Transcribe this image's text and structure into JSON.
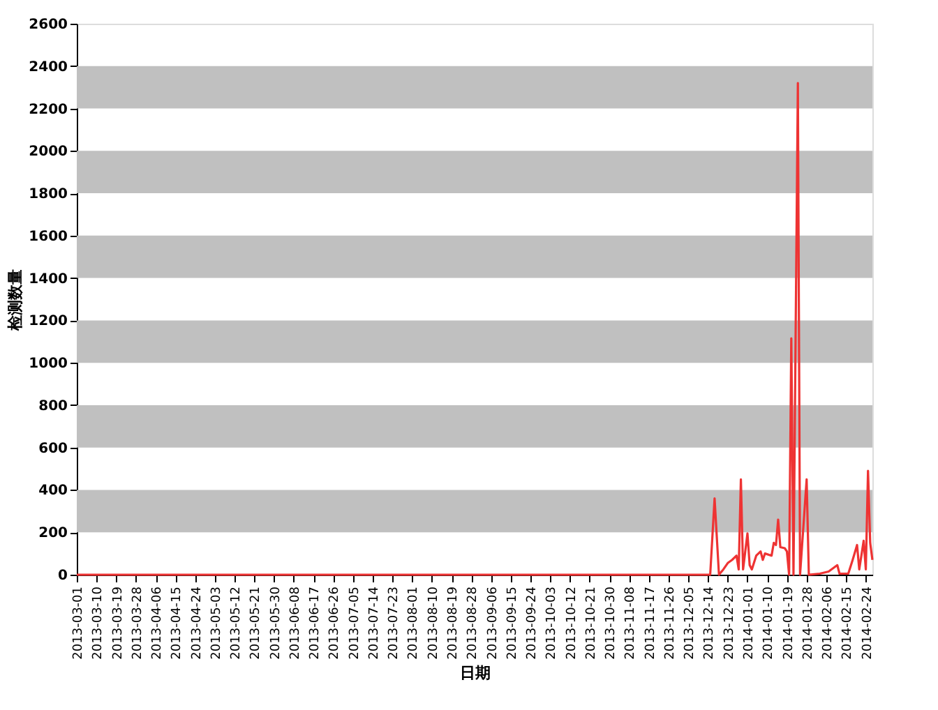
{
  "chart_data": {
    "type": "line",
    "xlabel": "日期",
    "ylabel": "检测数量",
    "x": [
      "2013-03-01",
      "2013-12-15",
      "2013-12-17",
      "2013-12-19",
      "2013-12-21",
      "2013-12-23",
      "2013-12-25",
      "2013-12-27",
      "2013-12-28",
      "2013-12-29",
      "2013-12-30",
      "2014-01-01",
      "2014-01-02",
      "2014-01-03",
      "2014-01-05",
      "2014-01-07",
      "2014-01-08",
      "2014-01-09",
      "2014-01-12",
      "2014-01-13",
      "2014-01-14",
      "2014-01-15",
      "2014-01-16",
      "2014-01-18",
      "2014-01-19",
      "2014-01-20",
      "2014-01-21",
      "2014-01-22",
      "2014-01-24",
      "2014-01-25",
      "2014-01-28",
      "2014-01-29",
      "2014-02-03",
      "2014-02-07",
      "2014-02-11",
      "2014-02-12",
      "2014-02-16",
      "2014-02-18",
      "2014-02-20",
      "2014-02-21",
      "2014-02-23",
      "2014-02-24",
      "2014-02-25",
      "2014-02-26",
      "2014-02-27"
    ],
    "series": [
      {
        "color": "#ee3333",
        "values": [
          0,
          0,
          360,
          0,
          25,
          55,
          70,
          90,
          25,
          450,
          25,
          195,
          45,
          25,
          90,
          110,
          70,
          100,
          90,
          150,
          140,
          260,
          130,
          125,
          110,
          0,
          1115,
          0,
          2320,
          0,
          450,
          0,
          5,
          15,
          45,
          5,
          5,
          70,
          140,
          25,
          160,
          25,
          490,
          150,
          70
        ]
      }
    ],
    "xlim": [
      "2013-03-01",
      "2014-02-27"
    ],
    "xticks": [
      "2013-03-01",
      "2013-03-10",
      "2013-03-19",
      "2013-03-28",
      "2013-04-06",
      "2013-04-15",
      "2013-04-24",
      "2013-05-03",
      "2013-05-12",
      "2013-05-21",
      "2013-05-30",
      "2013-06-08",
      "2013-06-17",
      "2013-06-26",
      "2013-07-05",
      "2013-07-14",
      "2013-07-23",
      "2013-08-01",
      "2013-08-10",
      "2013-08-19",
      "2013-08-28",
      "2013-09-06",
      "2013-09-15",
      "2013-09-24",
      "2013-10-03",
      "2013-10-12",
      "2013-10-21",
      "2013-10-30",
      "2013-11-08",
      "2013-11-17",
      "2013-11-26",
      "2013-12-05",
      "2013-12-14",
      "2013-12-23",
      "2014-01-01",
      "2014-01-10",
      "2014-01-19",
      "2014-01-28",
      "2014-02-06",
      "2014-02-15",
      "2014-02-24"
    ],
    "ylim": [
      0,
      2600
    ],
    "yticks": [
      0,
      200,
      400,
      600,
      800,
      1000,
      1200,
      1400,
      1600,
      1800,
      2000,
      2200,
      2400,
      2600
    ],
    "bands": [
      {
        "axis": "y",
        "from": 200,
        "to": 400,
        "color": "#c0c0c0"
      },
      {
        "axis": "y",
        "from": 600,
        "to": 800,
        "color": "#c0c0c0"
      },
      {
        "axis": "y",
        "from": 1000,
        "to": 1200,
        "color": "#c0c0c0"
      },
      {
        "axis": "y",
        "from": 1400,
        "to": 1600,
        "color": "#c0c0c0"
      },
      {
        "axis": "y",
        "from": 1800,
        "to": 2000,
        "color": "#c0c0c0"
      },
      {
        "axis": "y",
        "from": 2200,
        "to": 2400,
        "color": "#c0c0c0"
      }
    ],
    "grid": false,
    "legend": false,
    "marker": "none",
    "line_style": "solid"
  }
}
